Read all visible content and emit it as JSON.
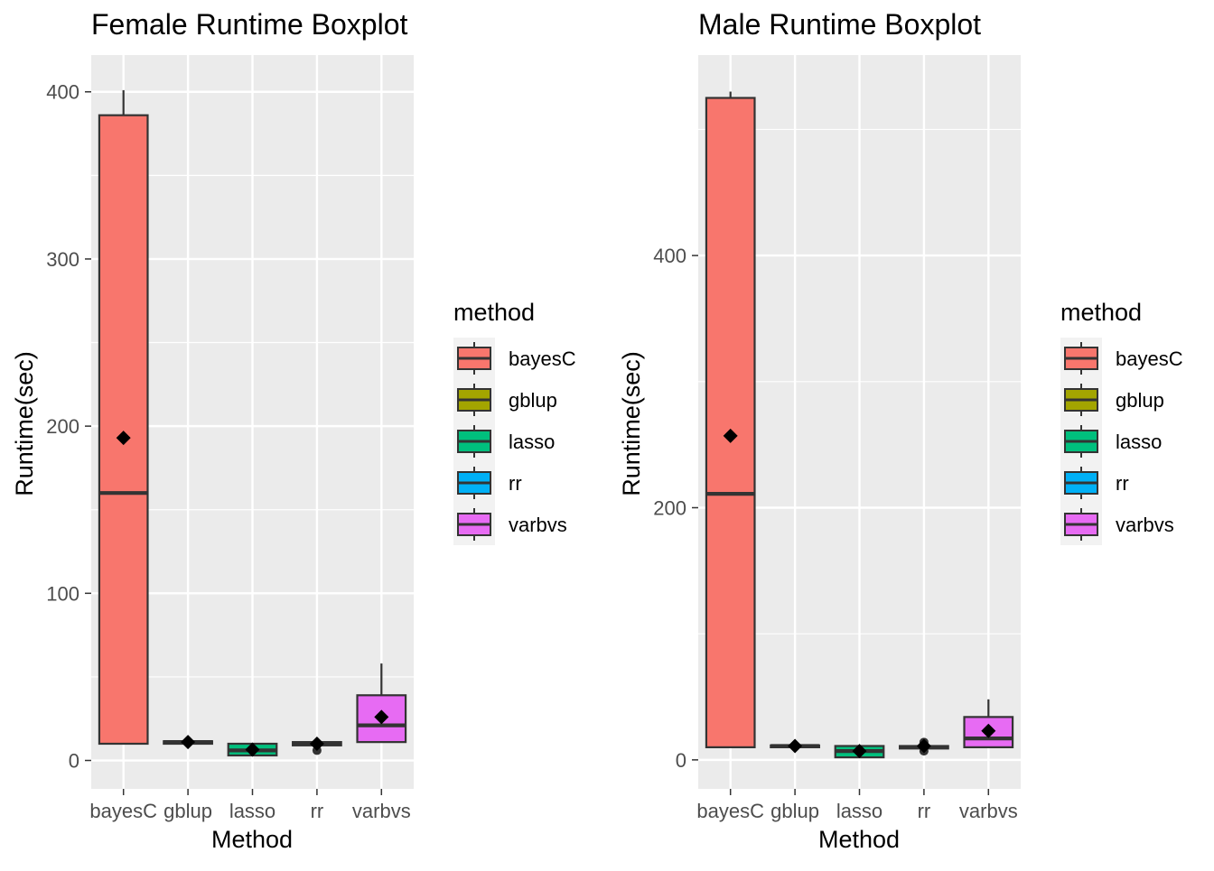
{
  "chart_data": [
    {
      "type": "boxplot",
      "title": "Female Runtime Boxplot",
      "xlabel": "Method",
      "ylabel": "Runtime(sec)",
      "ylim": [
        -17,
        422
      ],
      "yticks": [
        "0",
        "100",
        "200",
        "300",
        "400"
      ],
      "categories": [
        "bayesC",
        "gblup",
        "lasso",
        "rr",
        "varbvs"
      ],
      "boxes": [
        {
          "method": "bayesC",
          "whisker_low": 10,
          "q1": 10,
          "median": 160,
          "q3": 386,
          "whisker_high": 401,
          "mean": 193,
          "outliers": []
        },
        {
          "method": "gblup",
          "whisker_low": 10,
          "q1": 10,
          "median": 11,
          "q3": 11.5,
          "whisker_high": 12,
          "mean": 11,
          "outliers": []
        },
        {
          "method": "lasso",
          "whisker_low": 3,
          "q1": 3,
          "median": 6,
          "q3": 10,
          "whisker_high": 10,
          "mean": 6.5,
          "outliers": []
        },
        {
          "method": "rr",
          "whisker_low": 9,
          "q1": 9,
          "median": 10,
          "q3": 11,
          "whisker_high": 11,
          "mean": 10,
          "outliers": [
            6
          ]
        },
        {
          "method": "varbvs",
          "whisker_low": 11,
          "q1": 11,
          "median": 21,
          "q3": 39,
          "whisker_high": 58,
          "mean": 26,
          "outliers": []
        }
      ],
      "legend": {
        "title": "method",
        "placement": "right",
        "entries": [
          "bayesC",
          "gblup",
          "lasso",
          "rr",
          "varbvs"
        ]
      },
      "grid": true
    },
    {
      "type": "boxplot",
      "title": "Male Runtime Boxplot",
      "xlabel": "Method",
      "ylabel": "Runtime(sec)",
      "ylim": [
        -23,
        559
      ],
      "yticks": [
        "0",
        "200",
        "400"
      ],
      "categories": [
        "bayesC",
        "gblup",
        "lasso",
        "rr",
        "varbvs"
      ],
      "boxes": [
        {
          "method": "bayesC",
          "whisker_low": 10,
          "q1": 10,
          "median": 211,
          "q3": 525,
          "whisker_high": 530,
          "mean": 257,
          "outliers": []
        },
        {
          "method": "gblup",
          "whisker_low": 9,
          "q1": 10,
          "median": 11,
          "q3": 11.5,
          "whisker_high": 12,
          "mean": 11,
          "outliers": []
        },
        {
          "method": "lasso",
          "whisker_low": 2,
          "q1": 2,
          "median": 7,
          "q3": 11,
          "whisker_high": 11,
          "mean": 7,
          "outliers": []
        },
        {
          "method": "rr",
          "whisker_low": 9,
          "q1": 9,
          "median": 10,
          "q3": 11,
          "whisker_high": 11,
          "mean": 11,
          "outliers": [
            7,
            14
          ]
        },
        {
          "method": "varbvs",
          "whisker_low": 10,
          "q1": 10,
          "median": 17,
          "q3": 34,
          "whisker_high": 48,
          "mean": 23,
          "outliers": []
        }
      ],
      "legend": {
        "title": "method",
        "placement": "right",
        "entries": [
          "bayesC",
          "gblup",
          "lasso",
          "rr",
          "varbvs"
        ]
      },
      "grid": true
    }
  ],
  "colors": {
    "bayesC": "#F8766D",
    "gblup": "#A3A500",
    "lasso": "#00BF7D",
    "rr": "#00B0F6",
    "varbvs": "#E76BF3",
    "panel_background": "#EBEBEB",
    "grid": "#FFFFFF",
    "box_outline": "#333333"
  }
}
